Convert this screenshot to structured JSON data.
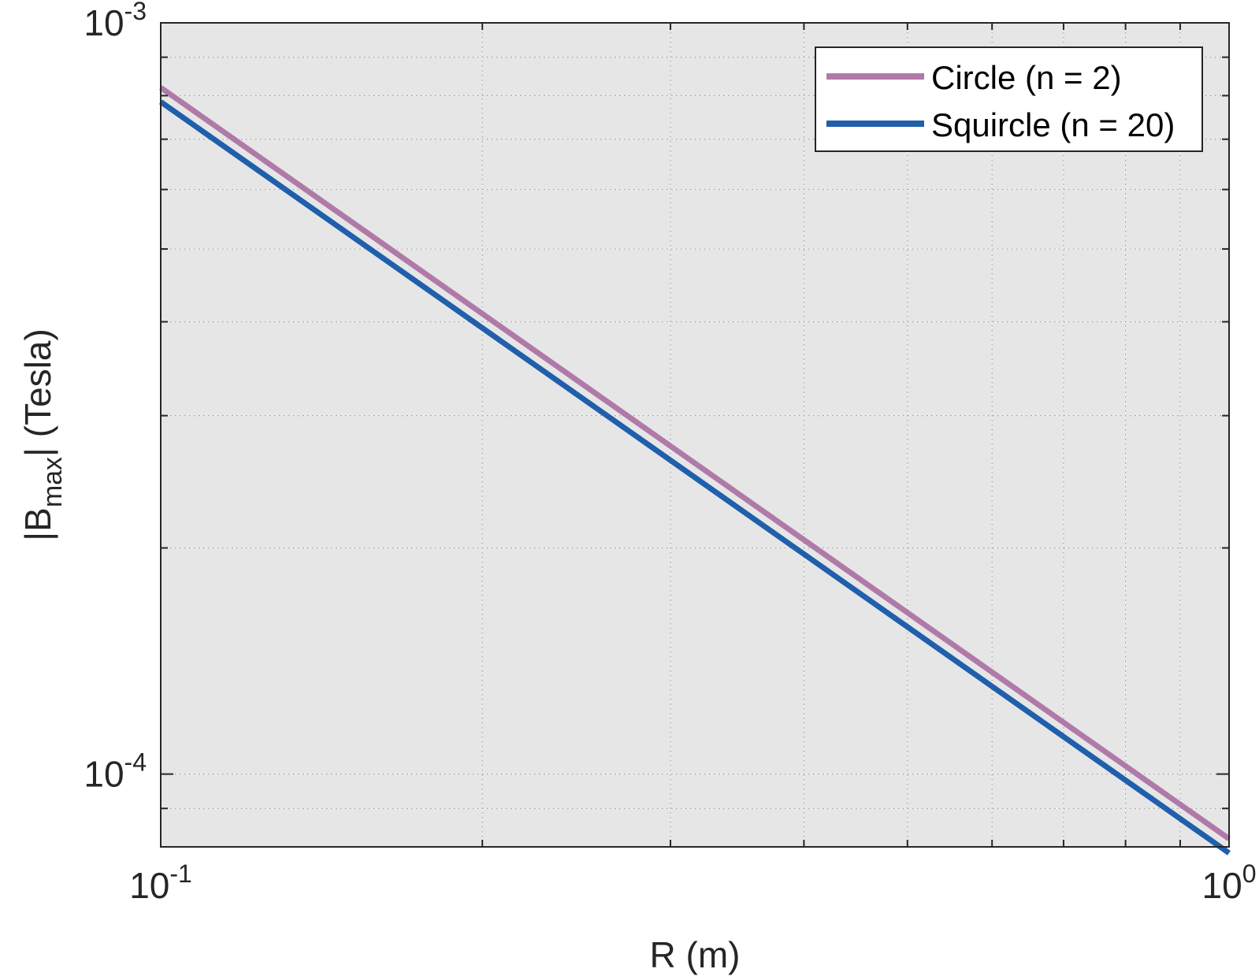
{
  "chart_data": {
    "type": "line",
    "title": "",
    "xlabel": "R (m)",
    "ylabel": {
      "main": "|B",
      "subscript": "max",
      "suffix": "| (Tesla)"
    },
    "xscale": "log",
    "yscale": "log",
    "xlim": [
      0.1,
      1
    ],
    "ylim": [
      8e-05,
      0.001
    ],
    "x_ticks": [
      {
        "value": 0.1,
        "base": "10",
        "exponent": "-1"
      },
      {
        "value": 1,
        "base": "10",
        "exponent": "0"
      }
    ],
    "y_ticks": [
      {
        "value": 0.0001,
        "base": "10",
        "exponent": "-4"
      },
      {
        "value": 0.001,
        "base": "10",
        "exponent": "-3"
      }
    ],
    "grid": true,
    "minor_grid": true,
    "legend_position": "top-right",
    "background_color": "#e6e6e6",
    "series": [
      {
        "name": "Circle (n = 2)",
        "color": "#b07aa8",
        "x": [
          0.1,
          1
        ],
        "y": [
          0.00082,
          8.2e-05
        ]
      },
      {
        "name": "Squircle (n = 20)",
        "color": "#1f5fac",
        "x": [
          0.1,
          1
        ],
        "y": [
          0.000785,
          7.85e-05
        ]
      }
    ]
  }
}
